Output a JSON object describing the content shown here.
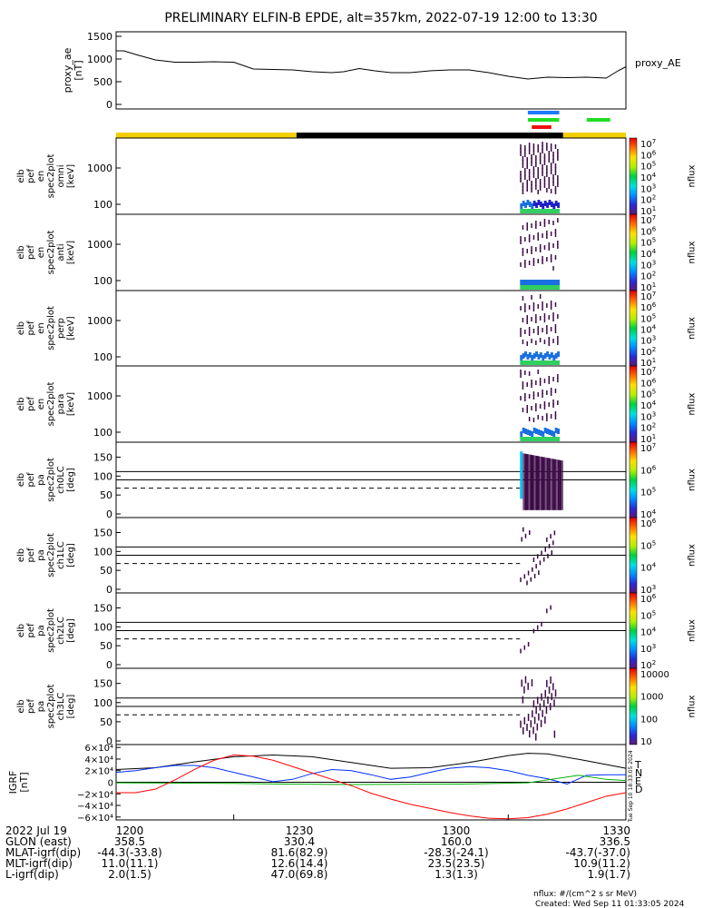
{
  "title": "PRELIMINARY ELFIN-B EPDE, alt=357km, 2022-07-19 12:00 to 13:30",
  "footer": {
    "units": "nflux: #/(cm^2 s sr MeV)",
    "created": "Created: Wed Sep 11 01:33:05 2024"
  },
  "colors": {
    "ae_line": "#000000",
    "bar_yellow": "#f2d000",
    "bar_black": "#000000",
    "flag_blue": "#1e78ff",
    "flag_green": "#22dd22",
    "flag_red": "#ee1111",
    "grf_t": "#000000",
    "grf_n": "#0030ff",
    "grf_e": "#00b000",
    "grf_d": "#ff0000",
    "spec_dark": "#3c0a46"
  },
  "chart_data": [
    {
      "type": "line",
      "name": "ae",
      "ylabel": "proxy_ae\n[nT]",
      "yticks": [
        "1500",
        "1000",
        "500",
        "0"
      ],
      "legend": "proxy_AE",
      "ylim": [
        -100,
        1600
      ],
      "xlim": [
        1200,
        1330
      ],
      "x": [
        1200,
        1202,
        1205,
        1210,
        1215,
        1220,
        1225,
        1230,
        1235,
        1240,
        1245,
        1250,
        1255,
        1258,
        1262,
        1266,
        1270,
        1275,
        1280,
        1285,
        1290,
        1295,
        1300,
        1305,
        1310,
        1315,
        1320,
        1325,
        1328,
        1330
      ],
      "values": [
        1180,
        1180,
        1100,
        980,
        930,
        930,
        940,
        930,
        780,
        770,
        760,
        720,
        700,
        720,
        790,
        740,
        700,
        700,
        740,
        760,
        760,
        700,
        620,
        560,
        600,
        590,
        600,
        580,
        740,
        830
      ]
    },
    {
      "type": "table",
      "name": "orbit_bar",
      "segments": [
        {
          "x0": 1200,
          "x1": 1246,
          "color": "yellow"
        },
        {
          "x0": 1246,
          "x1": 1314,
          "color": "black"
        },
        {
          "x0": 1314,
          "x1": 1330,
          "color": "yellow"
        }
      ],
      "flags": [
        {
          "x0": 1305,
          "x1": 1313,
          "row": 0,
          "color": "blue"
        },
        {
          "x0": 1305,
          "x1": 1313,
          "row": 1,
          "color": "green"
        },
        {
          "x0": 1306,
          "x1": 1311,
          "row": 2,
          "color": "red"
        },
        {
          "x0": 1320,
          "x1": 1326,
          "row": 1,
          "color": "green"
        }
      ]
    },
    {
      "type": "heatmap",
      "name": "spec_omni",
      "ylabel": [
        "elb",
        "pef",
        "en",
        "spec2plot",
        "omni",
        "[keV]"
      ],
      "yticks": [
        "1000",
        "100"
      ],
      "cbar_labels": [
        "10",
        "10",
        "10",
        "10",
        "10",
        "10",
        "10"
      ],
      "cbar_exps": [
        "7",
        "6",
        "5",
        "4",
        "3",
        "2",
        "1"
      ],
      "cbar_unit": "nflux"
    },
    {
      "type": "heatmap",
      "name": "spec_anti",
      "ylabel": [
        "elb",
        "pef",
        "en",
        "spec2plot",
        "anti",
        "[keV]"
      ],
      "yticks": [
        "1000",
        "100"
      ],
      "cbar_labels": [
        "10",
        "10",
        "10",
        "10",
        "10",
        "10",
        "10"
      ],
      "cbar_exps": [
        "7",
        "6",
        "5",
        "4",
        "3",
        "2",
        "1"
      ],
      "cbar_unit": "nflux"
    },
    {
      "type": "heatmap",
      "name": "spec_perp",
      "ylabel": [
        "elb",
        "pef",
        "en",
        "spec2plot",
        "perp",
        "[keV]"
      ],
      "yticks": [
        "1000",
        "100"
      ],
      "cbar_labels": [
        "10",
        "10",
        "10",
        "10",
        "10",
        "10",
        "10"
      ],
      "cbar_exps": [
        "7",
        "6",
        "5",
        "4",
        "3",
        "2",
        "1"
      ],
      "cbar_unit": "nflux"
    },
    {
      "type": "heatmap",
      "name": "spec_para",
      "ylabel": [
        "elb",
        "pef",
        "en",
        "spec2plot",
        "para",
        "[keV]"
      ],
      "yticks": [
        "1000",
        "100"
      ],
      "cbar_labels": [
        "10",
        "10",
        "10",
        "10",
        "10",
        "10",
        "10"
      ],
      "cbar_exps": [
        "7",
        "6",
        "5",
        "4",
        "3",
        "2",
        "1"
      ],
      "cbar_unit": "nflux"
    },
    {
      "type": "heatmap",
      "name": "pa_ch0",
      "ylabel": [
        "elb",
        "pef",
        "pa",
        "spec2plot",
        "ch0LC",
        "[deg]"
      ],
      "yticks": [
        "150",
        "100",
        "50",
        "0"
      ],
      "cbar_labels": [
        "10",
        "10",
        "10",
        "10"
      ],
      "cbar_exps": [
        "7",
        "6",
        "5",
        "4"
      ],
      "cbar_unit": "nflux"
    },
    {
      "type": "heatmap",
      "name": "pa_ch1",
      "ylabel": [
        "elb",
        "pef",
        "pa",
        "spec2plot",
        "ch1LC",
        "[deg]"
      ],
      "yticks": [
        "150",
        "100",
        "50",
        "0"
      ],
      "cbar_labels": [
        "10",
        "10",
        "10",
        "10"
      ],
      "cbar_exps": [
        "6",
        "5",
        "4",
        "3"
      ],
      "cbar_unit": "nflux"
    },
    {
      "type": "heatmap",
      "name": "pa_ch2",
      "ylabel": [
        "elb",
        "pef",
        "pa",
        "spec2plot",
        "ch2LC",
        "[deg]"
      ],
      "yticks": [
        "150",
        "100",
        "50",
        "0"
      ],
      "cbar_labels": [
        "10",
        "10",
        "10",
        "10",
        "10"
      ],
      "cbar_exps": [
        "6",
        "5",
        "4",
        "3",
        "2"
      ],
      "cbar_unit": "nflux"
    },
    {
      "type": "heatmap",
      "name": "pa_ch3",
      "ylabel": [
        "elb",
        "pef",
        "pa",
        "spec2plot",
        "ch3LC",
        "[deg]"
      ],
      "yticks": [
        "150",
        "100",
        "50",
        "0"
      ],
      "cbar_labels": [
        "10000",
        "1000",
        "100",
        "10"
      ],
      "cbar_exps": [
        "",
        "",
        "",
        ""
      ],
      "cbar_unit": "nflux"
    },
    {
      "type": "line",
      "name": "grf",
      "ylabel": "IGRF\n[nT]",
      "yticks": [
        "6×10⁴",
        "4×10⁴",
        "2×10⁴",
        "0",
        "−2×10⁴",
        "−4×10⁴",
        "−6×10⁴"
      ],
      "ylim": [
        -65000,
        65000
      ],
      "xlim": [
        1200,
        1330
      ],
      "legend": [
        "T",
        "N",
        "E",
        "D"
      ],
      "series": [
        {
          "name": "T",
          "x": [
            1200,
            1210,
            1220,
            1230,
            1240,
            1250,
            1260,
            1270,
            1280,
            1290,
            1300,
            1305,
            1310,
            1320,
            1330
          ],
          "values": [
            22000,
            25000,
            35000,
            44000,
            47000,
            44000,
            34000,
            24000,
            25000,
            34000,
            46000,
            50000,
            49000,
            37000,
            24000
          ]
        },
        {
          "name": "N",
          "x": [
            1200,
            1205,
            1210,
            1215,
            1220,
            1225,
            1230,
            1235,
            1240,
            1245,
            1250,
            1255,
            1260,
            1265,
            1270,
            1275,
            1280,
            1285,
            1290,
            1295,
            1300,
            1305,
            1310,
            1315,
            1320,
            1325,
            1330
          ],
          "values": [
            17000,
            20000,
            25000,
            29000,
            29000,
            25000,
            17000,
            9000,
            1000,
            5000,
            15000,
            22000,
            20000,
            13000,
            5000,
            9000,
            17000,
            24000,
            27000,
            25000,
            20000,
            12000,
            6000,
            -3000,
            12000,
            13000,
            13000
          ]
        },
        {
          "name": "E",
          "x": [
            1200,
            1230,
            1240,
            1260,
            1290,
            1305,
            1312,
            1318,
            1325,
            1330
          ],
          "values": [
            -1000,
            -2000,
            -3000,
            -4000,
            -3000,
            -1000,
            6000,
            12000,
            5000,
            3000
          ]
        },
        {
          "name": "D",
          "x": [
            1200,
            1205,
            1210,
            1215,
            1220,
            1225,
            1230,
            1235,
            1240,
            1245,
            1250,
            1255,
            1260,
            1265,
            1270,
            1275,
            1280,
            1285,
            1290,
            1295,
            1300,
            1305,
            1310,
            1315,
            1320,
            1325,
            1330
          ],
          "values": [
            -18000,
            -18000,
            -12000,
            4000,
            22000,
            38000,
            47000,
            45000,
            38000,
            27000,
            16000,
            5000,
            -6000,
            -19000,
            -29000,
            -38000,
            -45000,
            -52000,
            -58000,
            -62000,
            -63000,
            -61000,
            -55000,
            -46000,
            -35000,
            -24000,
            -18000
          ]
        }
      ]
    }
  ],
  "side_stamp": "Tue Sep 10 18:33:05 2024",
  "bottom_axis": {
    "rows": [
      {
        "label": "2022 Jul 19",
        "values": [
          "1200",
          "1230",
          "1300",
          "1330"
        ]
      },
      {
        "label": "GLON (east)",
        "values": [
          "358.5",
          "330.4",
          "160.0",
          "336.5"
        ]
      },
      {
        "label": "MLAT-igrf(dip)",
        "values": [
          "-44.3(-33.8)",
          "81.6(82.9)",
          "-28.3(-24.1)",
          "-43.7(-37.0)"
        ]
      },
      {
        "label": "MLT-igrf(dip)",
        "values": [
          "11.0(11.1)",
          "12.6(14.4)",
          "23.5(23.5)",
          "10.9(11.2)"
        ]
      },
      {
        "label": "L-igrf(dip)",
        "values": [
          "2.0(1.5)",
          "47.0(69.8)",
          "1.3(1.3)",
          "1.9(1.7)"
        ]
      }
    ]
  }
}
